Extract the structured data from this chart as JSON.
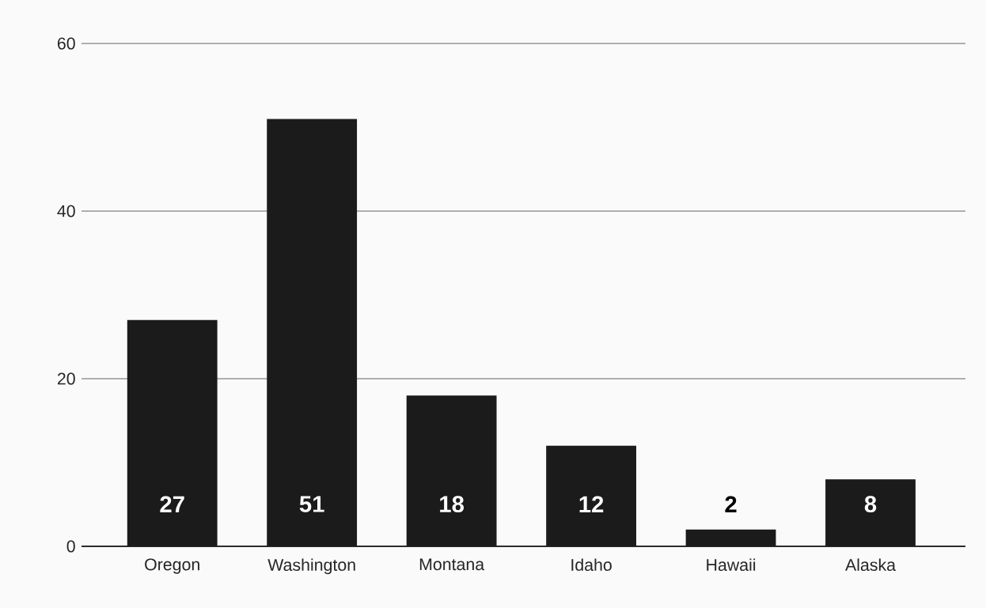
{
  "chart_data": {
    "type": "bar",
    "categories": [
      "Oregon",
      "Washington",
      "Montana",
      "Idaho",
      "Hawaii",
      "Alaska"
    ],
    "values": [
      27,
      51,
      18,
      12,
      2,
      8
    ],
    "color": "#1b1b1b",
    "ylim": [
      0,
      60
    ],
    "yticks": [
      0,
      20,
      40,
      60
    ],
    "grid": "y",
    "data_labels": true
  }
}
